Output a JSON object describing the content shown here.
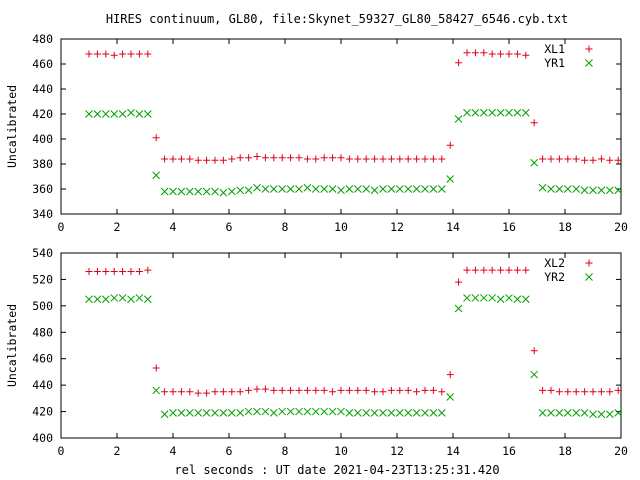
{
  "chart_data": {
    "type": "scatter",
    "title": "HIRES continuum, GL80, file:Skynet_59327_GL80_58427_6546.cyb.txt",
    "xlabel": "rel seconds : UT date 2021-04-23T13:25:31.420",
    "panels": [
      {
        "ylabel": "Uncalibrated",
        "xlim": [
          0,
          20
        ],
        "ylim": [
          340,
          480
        ],
        "xticks": [
          0,
          2,
          4,
          6,
          8,
          10,
          12,
          14,
          16,
          18,
          20
        ],
        "yticks": [
          340,
          360,
          380,
          400,
          420,
          440,
          460,
          480
        ],
        "legend_position": "top-right",
        "series": [
          {
            "name": "XL1",
            "marker": "plus",
            "color": "#e0001a",
            "x": [
              1.0,
              1.3,
              1.6,
              1.9,
              2.2,
              2.5,
              2.8,
              3.1,
              3.4,
              3.7,
              4.0,
              4.3,
              4.6,
              4.9,
              5.2,
              5.5,
              5.8,
              6.1,
              6.4,
              6.7,
              7.0,
              7.3,
              7.6,
              7.9,
              8.2,
              8.5,
              8.8,
              9.1,
              9.4,
              9.7,
              10.0,
              10.3,
              10.6,
              10.9,
              11.2,
              11.5,
              11.8,
              12.1,
              12.4,
              12.7,
              13.0,
              13.3,
              13.6,
              13.9,
              14.2,
              14.5,
              14.8,
              15.1,
              15.4,
              15.7,
              16.0,
              16.3,
              16.6,
              16.9,
              17.2,
              17.5,
              17.8,
              18.1,
              18.4,
              18.7,
              19.0,
              19.3,
              19.6,
              19.9
            ],
            "y": [
              468,
              468,
              468,
              467,
              468,
              468,
              468,
              468,
              401,
              384,
              384,
              384,
              384,
              383,
              383,
              383,
              383,
              384,
              385,
              385,
              386,
              385,
              385,
              385,
              385,
              385,
              384,
              384,
              385,
              385,
              385,
              384,
              384,
              384,
              384,
              384,
              384,
              384,
              384,
              384,
              384,
              384,
              384,
              395,
              461,
              469,
              469,
              469,
              468,
              468,
              468,
              468,
              467,
              413,
              384,
              384,
              384,
              384,
              384,
              383,
              383,
              384,
              383,
              383
            ]
          },
          {
            "name": "YR1",
            "marker": "cross",
            "color": "#00a000",
            "x": [
              1.0,
              1.3,
              1.6,
              1.9,
              2.2,
              2.5,
              2.8,
              3.1,
              3.4,
              3.7,
              4.0,
              4.3,
              4.6,
              4.9,
              5.2,
              5.5,
              5.8,
              6.1,
              6.4,
              6.7,
              7.0,
              7.3,
              7.6,
              7.9,
              8.2,
              8.5,
              8.8,
              9.1,
              9.4,
              9.7,
              10.0,
              10.3,
              10.6,
              10.9,
              11.2,
              11.5,
              11.8,
              12.1,
              12.4,
              12.7,
              13.0,
              13.3,
              13.6,
              13.9,
              14.2,
              14.5,
              14.8,
              15.1,
              15.4,
              15.7,
              16.0,
              16.3,
              16.6,
              16.9,
              17.2,
              17.5,
              17.8,
              18.1,
              18.4,
              18.7,
              19.0,
              19.3,
              19.6,
              19.9
            ],
            "y": [
              420,
              420,
              420,
              420,
              420,
              421,
              420,
              420,
              371,
              358,
              358,
              358,
              358,
              358,
              358,
              358,
              357,
              358,
              359,
              359,
              361,
              360,
              360,
              360,
              360,
              360,
              361,
              360,
              360,
              360,
              359,
              360,
              360,
              360,
              359,
              360,
              360,
              360,
              360,
              360,
              360,
              360,
              360,
              368,
              416,
              421,
              421,
              421,
              421,
              421,
              421,
              421,
              421,
              381,
              361,
              360,
              360,
              360,
              360,
              359,
              359,
              359,
              359,
              359
            ]
          }
        ]
      },
      {
        "ylabel": "Uncalibrated",
        "xlim": [
          0,
          20
        ],
        "ylim": [
          400,
          540
        ],
        "xticks": [
          0,
          2,
          4,
          6,
          8,
          10,
          12,
          14,
          16,
          18,
          20
        ],
        "yticks": [
          400,
          420,
          440,
          460,
          480,
          500,
          520,
          540
        ],
        "legend_position": "top-right",
        "series": [
          {
            "name": "XL2",
            "marker": "plus",
            "color": "#e0001a",
            "x": [
              1.0,
              1.3,
              1.6,
              1.9,
              2.2,
              2.5,
              2.8,
              3.1,
              3.4,
              3.7,
              4.0,
              4.3,
              4.6,
              4.9,
              5.2,
              5.5,
              5.8,
              6.1,
              6.4,
              6.7,
              7.0,
              7.3,
              7.6,
              7.9,
              8.2,
              8.5,
              8.8,
              9.1,
              9.4,
              9.7,
              10.0,
              10.3,
              10.6,
              10.9,
              11.2,
              11.5,
              11.8,
              12.1,
              12.4,
              12.7,
              13.0,
              13.3,
              13.6,
              13.9,
              14.2,
              14.5,
              14.8,
              15.1,
              15.4,
              15.7,
              16.0,
              16.3,
              16.6,
              16.9,
              17.2,
              17.5,
              17.8,
              18.1,
              18.4,
              18.7,
              19.0,
              19.3,
              19.6,
              19.9
            ],
            "y": [
              526,
              526,
              526,
              526,
              526,
              526,
              526,
              527,
              453,
              435,
              435,
              435,
              435,
              434,
              434,
              435,
              435,
              435,
              435,
              436,
              437,
              437,
              436,
              436,
              436,
              436,
              436,
              436,
              436,
              435,
              436,
              436,
              436,
              436,
              435,
              435,
              436,
              436,
              436,
              435,
              436,
              436,
              435,
              448,
              518,
              527,
              527,
              527,
              527,
              527,
              527,
              527,
              527,
              466,
              436,
              436,
              435,
              435,
              435,
              435,
              435,
              435,
              435,
              436
            ]
          },
          {
            "name": "YR2",
            "marker": "cross",
            "color": "#00a000",
            "x": [
              1.0,
              1.3,
              1.6,
              1.9,
              2.2,
              2.5,
              2.8,
              3.1,
              3.4,
              3.7,
              4.0,
              4.3,
              4.6,
              4.9,
              5.2,
              5.5,
              5.8,
              6.1,
              6.4,
              6.7,
              7.0,
              7.3,
              7.6,
              7.9,
              8.2,
              8.5,
              8.8,
              9.1,
              9.4,
              9.7,
              10.0,
              10.3,
              10.6,
              10.9,
              11.2,
              11.5,
              11.8,
              12.1,
              12.4,
              12.7,
              13.0,
              13.3,
              13.6,
              13.9,
              14.2,
              14.5,
              14.8,
              15.1,
              15.4,
              15.7,
              16.0,
              16.3,
              16.6,
              16.9,
              17.2,
              17.5,
              17.8,
              18.1,
              18.4,
              18.7,
              19.0,
              19.3,
              19.6,
              19.9
            ],
            "y": [
              505,
              505,
              505,
              506,
              506,
              505,
              506,
              505,
              436,
              418,
              419,
              419,
              419,
              419,
              419,
              419,
              419,
              419,
              419,
              420,
              420,
              420,
              419,
              420,
              420,
              420,
              420,
              420,
              420,
              420,
              420,
              419,
              419,
              419,
              419,
              419,
              419,
              419,
              419,
              419,
              419,
              419,
              419,
              431,
              498,
              506,
              506,
              506,
              506,
              505,
              506,
              505,
              505,
              448,
              419,
              419,
              419,
              419,
              419,
              419,
              418,
              418,
              418,
              419
            ]
          }
        ]
      }
    ]
  }
}
